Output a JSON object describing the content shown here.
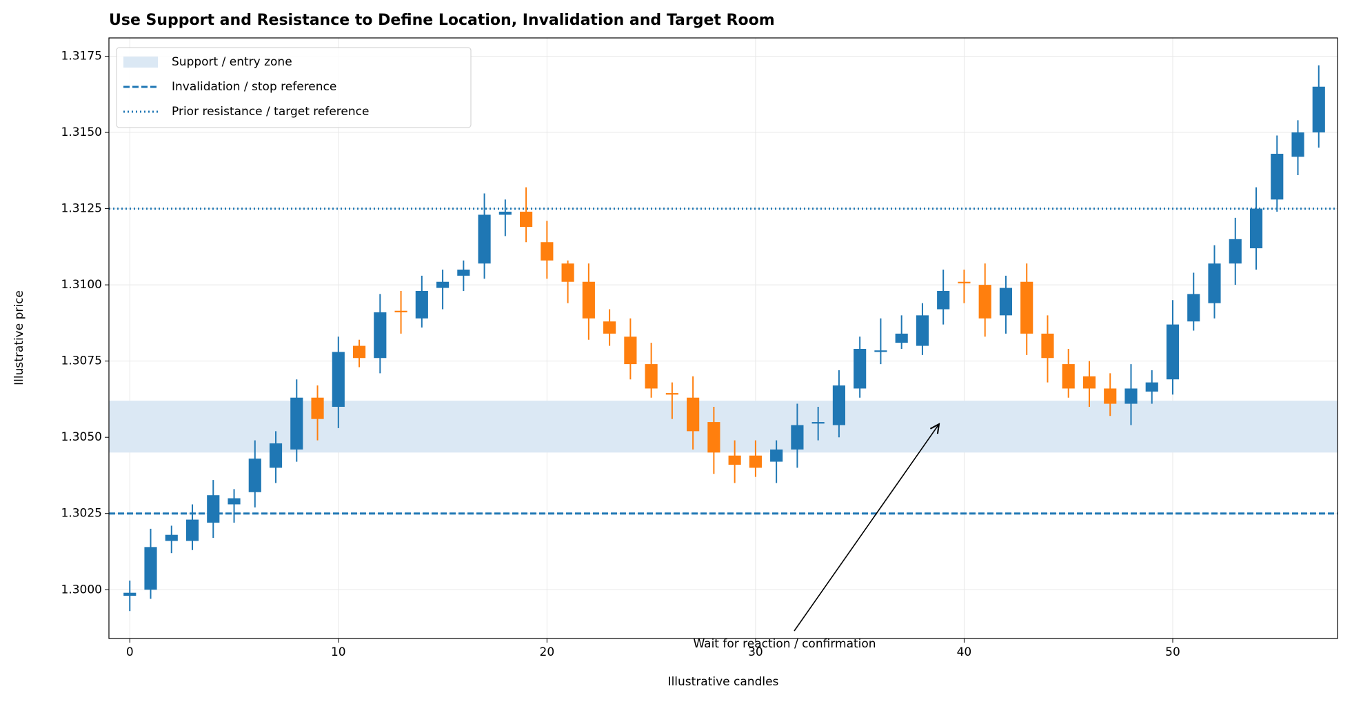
{
  "chart_data": {
    "type": "candlestick",
    "title": "Use Support and Resistance to Define Location, Invalidation and Target Room",
    "x_label": "Illustrative candles",
    "y_label": "Illustrative price",
    "annotation": "Wait for reaction / confirmation",
    "up_color": "#1f77b4",
    "down_color": "#ff7f0e",
    "grid": true,
    "legend_loc": "upper left",
    "xlim": [
      -1,
      57.9
    ],
    "ylim": [
      1.2984,
      1.3181
    ],
    "xticks": [
      0,
      10,
      20,
      30,
      40,
      50
    ],
    "yticks": [
      {
        "value": 1.3,
        "label": "1.3000"
      },
      1.3025,
      {
        "value": 1.305,
        "label": "1.3050"
      },
      1.3075,
      {
        "value": 1.31,
        "label": "1.3100"
      },
      1.3125,
      {
        "value": 1.315,
        "label": "1.3150"
      },
      1.3175
    ],
    "x": [
      0,
      1,
      2,
      3,
      4,
      5,
      6,
      7,
      8,
      9,
      10,
      11,
      12,
      13,
      14,
      15,
      16,
      17,
      18,
      19,
      20,
      21,
      22,
      23,
      24,
      25,
      26,
      27,
      28,
      29,
      30,
      31,
      32,
      33,
      34,
      35,
      36,
      37,
      38,
      39,
      40,
      41,
      42,
      43,
      44,
      45,
      46,
      47,
      48,
      49,
      50,
      51,
      52,
      53,
      54,
      55,
      56,
      57
    ],
    "open": [
      1.2998,
      1.3,
      1.3016,
      1.3016,
      1.3022,
      1.3028,
      1.3032,
      1.304,
      1.3046,
      1.3063,
      1.306,
      1.308,
      1.3076,
      1.30915,
      1.3089,
      1.3099,
      1.3103,
      1.3107,
      1.3123,
      1.3124,
      1.3114,
      1.3107,
      1.3101,
      1.3088,
      1.3083,
      1.3074,
      1.30645,
      1.3063,
      1.3055,
      1.3044,
      1.3044,
      1.3042,
      1.3046,
      1.30545,
      1.3054,
      1.3066,
      1.3078,
      1.3081,
      1.308,
      1.3092,
      1.3101,
      1.31,
      1.309,
      1.3101,
      1.3084,
      1.3074,
      1.307,
      1.3066,
      1.3061,
      1.3065,
      1.3069,
      1.3088,
      1.3094,
      1.3107,
      1.3112,
      1.3128,
      1.3142,
      1.315
    ],
    "high": [
      1.3003,
      1.302,
      1.3021,
      1.3028,
      1.3036,
      1.3033,
      1.3049,
      1.3052,
      1.3069,
      1.3067,
      1.3083,
      1.3082,
      1.3097,
      1.3098,
      1.3103,
      1.3105,
      1.3108,
      1.313,
      1.3128,
      1.3132,
      1.3121,
      1.3108,
      1.3107,
      1.3092,
      1.3089,
      1.3081,
      1.3068,
      1.307,
      1.306,
      1.3049,
      1.3049,
      1.3049,
      1.3061,
      1.306,
      1.3072,
      1.3083,
      1.3089,
      1.309,
      1.3094,
      1.3105,
      1.3105,
      1.3107,
      1.3103,
      1.3107,
      1.309,
      1.3079,
      1.3075,
      1.3071,
      1.3074,
      1.3072,
      1.3095,
      1.3104,
      1.3113,
      1.3122,
      1.3132,
      1.3149,
      1.3154,
      1.3172
    ],
    "low": [
      1.2993,
      1.2997,
      1.3012,
      1.3013,
      1.3017,
      1.3022,
      1.3027,
      1.3035,
      1.3042,
      1.3049,
      1.3053,
      1.3073,
      1.3071,
      1.3084,
      1.3086,
      1.3092,
      1.3098,
      1.3102,
      1.3116,
      1.3114,
      1.3102,
      1.3094,
      1.3082,
      1.308,
      1.3069,
      1.3063,
      1.3056,
      1.3046,
      1.3038,
      1.3035,
      1.3037,
      1.3035,
      1.304,
      1.3049,
      1.305,
      1.3063,
      1.3074,
      1.3079,
      1.3077,
      1.3087,
      1.3094,
      1.3083,
      1.3084,
      1.3077,
      1.3068,
      1.3063,
      1.306,
      1.3057,
      1.3054,
      1.3061,
      1.3064,
      1.3085,
      1.3089,
      1.31,
      1.3105,
      1.3124,
      1.3136,
      1.3145
    ],
    "close": [
      1.2999,
      1.3014,
      1.3018,
      1.3023,
      1.3031,
      1.303,
      1.3043,
      1.3048,
      1.3063,
      1.3056,
      1.3078,
      1.3076,
      1.3091,
      1.3091,
      1.3098,
      1.3101,
      1.3105,
      1.3123,
      1.3124,
      1.3119,
      1.3108,
      1.3101,
      1.3089,
      1.3084,
      1.3074,
      1.3066,
      1.3064,
      1.3052,
      1.3045,
      1.3041,
      1.304,
      1.3046,
      1.3054,
      1.3055,
      1.3067,
      1.3079,
      1.30785,
      1.3084,
      1.309,
      1.3098,
      1.31005,
      1.3089,
      1.3099,
      1.3084,
      1.3076,
      1.3066,
      1.3066,
      1.3061,
      1.3066,
      1.3068,
      1.3087,
      1.3097,
      1.3107,
      1.3115,
      1.3125,
      1.3143,
      1.315,
      1.3165
    ],
    "zone": {
      "name": "Support / entry zone",
      "low": 1.3045,
      "high": 1.3062,
      "color": "#dbe8f4"
    },
    "stop": {
      "name": "Invalidation / stop reference",
      "value": 1.3025,
      "color": "#1f77b4"
    },
    "target": {
      "name": "Prior resistance / target reference",
      "value": 1.3125,
      "color": "#1f77b4"
    }
  }
}
